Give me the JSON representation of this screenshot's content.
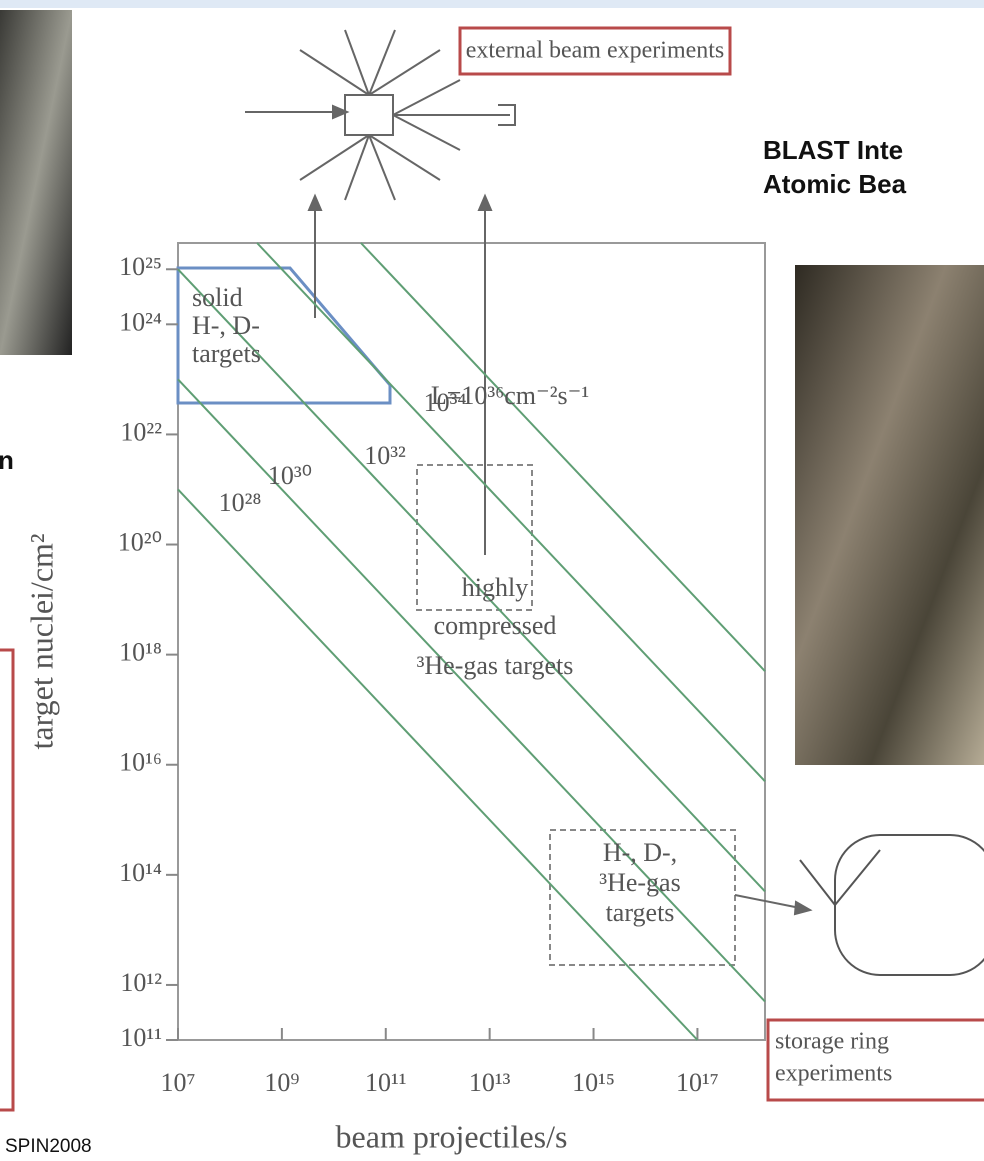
{
  "chart_data": {
    "type": "line",
    "log_x": true,
    "log_y": true,
    "xlabel": "beam projectiles/s",
    "ylabel": "target nuclei/cm²",
    "xlim": [
      10000000,
      2000000000000000000
    ],
    "ylim": [
      100000000000,
      30000000000000000000000000
    ],
    "xticks": [
      {
        "value": 10000000,
        "label": "10⁷"
      },
      {
        "value": 1000000000,
        "label": "10⁹"
      },
      {
        "value": 100000000000,
        "label": "10¹¹"
      },
      {
        "value": 10000000000000,
        "label": "10¹³"
      },
      {
        "value": 1000000000000000,
        "label": "10¹⁵"
      },
      {
        "value": 100000000000000000,
        "label": "10¹⁷"
      }
    ],
    "yticks": [
      {
        "value": 100000000000,
        "label": "10¹¹"
      },
      {
        "value": 1000000000000,
        "label": "10¹²"
      },
      {
        "value": 100000000000000,
        "label": "10¹⁴"
      },
      {
        "value": 10000000000000000,
        "label": "10¹⁶"
      },
      {
        "value": 1000000000000000000,
        "label": "10¹⁸"
      },
      {
        "value": 100000000000000000000,
        "label": "10²⁰"
      },
      {
        "value": 10000000000000000000000,
        "label": "10²²"
      },
      {
        "value": 1000000000000000000000000,
        "label": "10²⁴"
      },
      {
        "value": 10000000000000000000000000,
        "label": "10²⁵"
      }
    ],
    "series": [
      {
        "name": "10²⁸",
        "color": "#5f9e74",
        "x": [
          10000000,
          100000000000000000
        ],
        "values": [
          1000000000000000000000,
          100000000000
        ]
      },
      {
        "name": "10³⁰",
        "color": "#5f9e74",
        "x": [
          10000000,
          2000000000000000000
        ],
        "values": [
          100000000000000000000000,
          500000000000
        ]
      },
      {
        "name": "10³²",
        "color": "#5f9e74",
        "x": [
          10000000,
          2000000000000000000
        ],
        "values": [
          10000000000000000000000000,
          50000000000000
        ]
      },
      {
        "name": "10³⁴",
        "color": "#5f9e74",
        "x": [
          333000000,
          2000000000000000000
        ],
        "values": [
          30000000000000000000000000,
          5000000000000000
        ]
      },
      {
        "name": "L=10³⁶cm⁻²s⁻¹",
        "color": "#5f9e74",
        "x": [
          33300000000,
          2000000000000000000
        ],
        "values": [
          30000000000000000000000000,
          500000000000000000
        ]
      }
    ],
    "annotations": {
      "solid": [
        "solid",
        "H-, D-",
        "targets"
      ],
      "compressed": [
        "highly",
        "compressed",
        "³He-gas targets"
      ],
      "gas": [
        "H-, D-,",
        "³He-gas",
        "targets"
      ],
      "external": "external beam experiments",
      "storage": [
        "storage ring",
        "experiments"
      ]
    }
  },
  "slide": {
    "photo_caption": [
      "BLAST Inte",
      "Atomic Bea"
    ],
    "left_fragment": "n",
    "footer": "SPIN2008"
  }
}
